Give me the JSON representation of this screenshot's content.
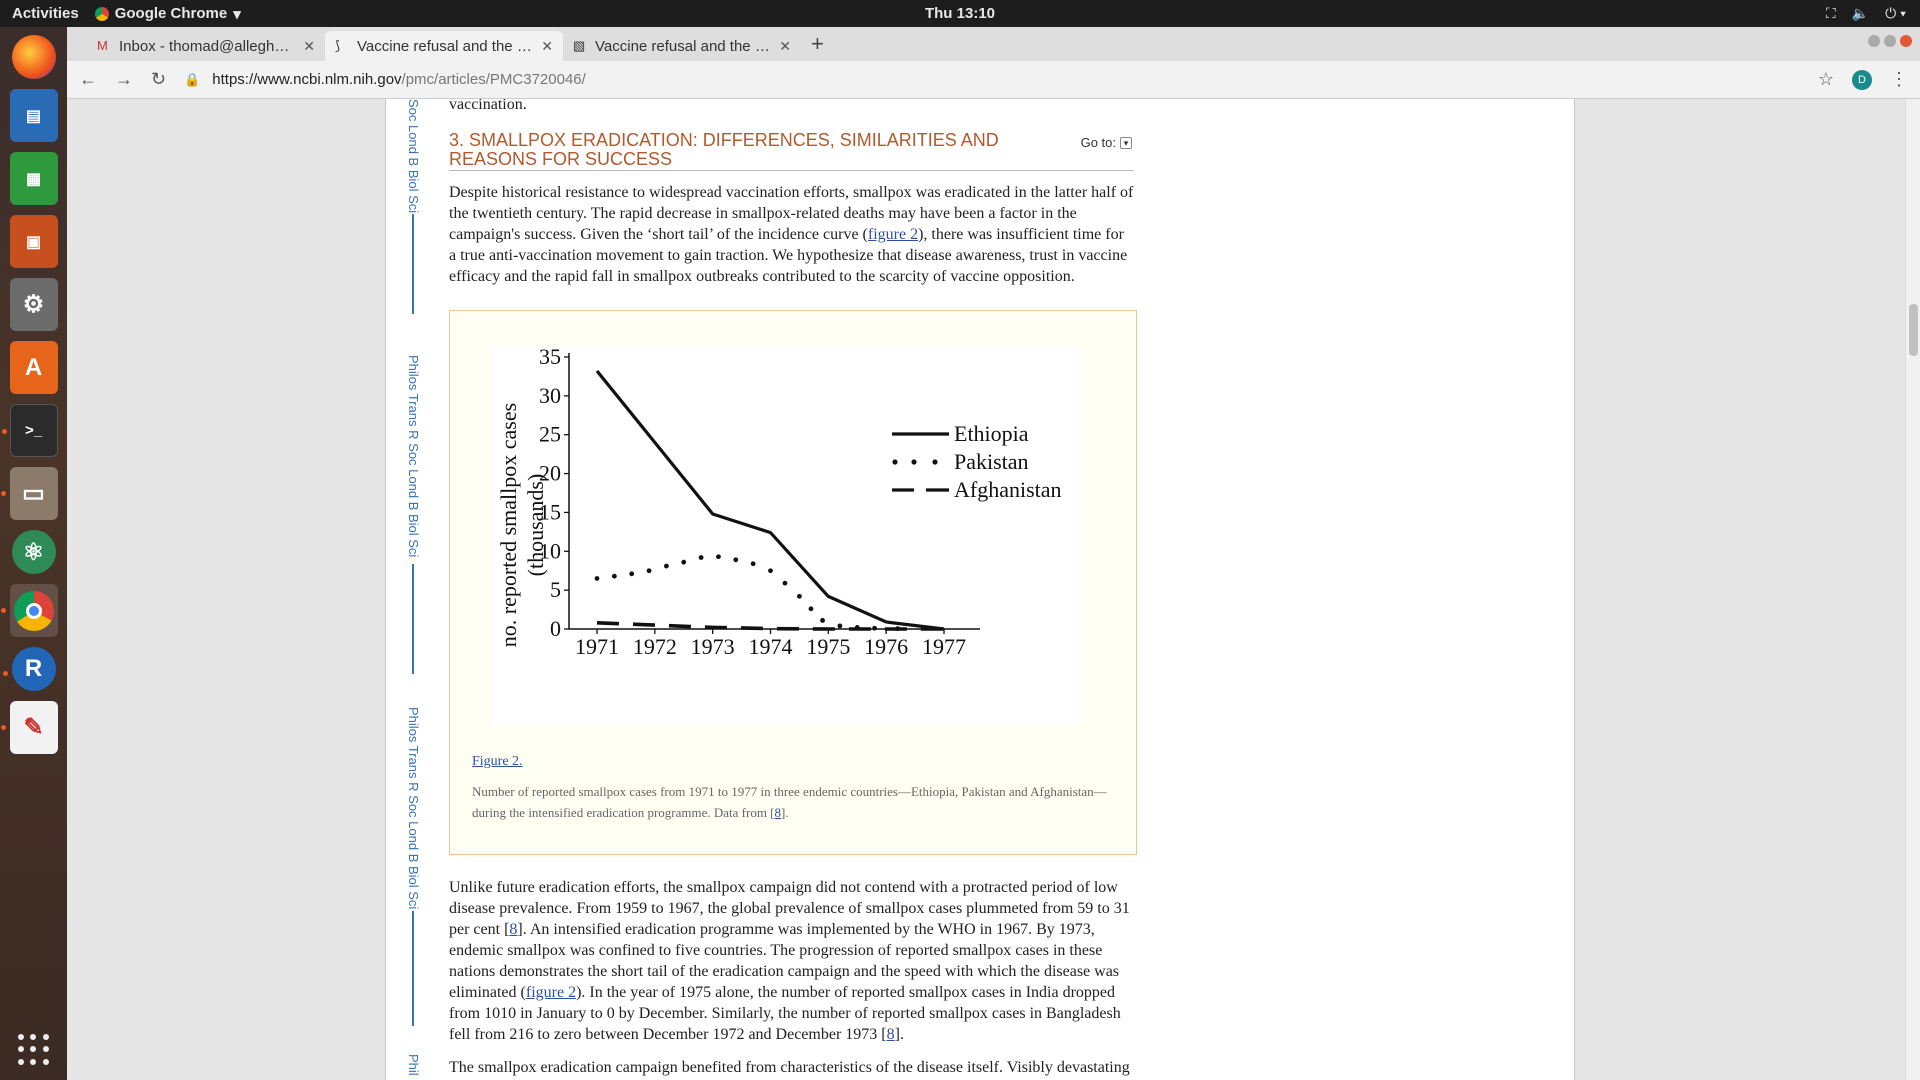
{
  "topbar": {
    "activities": "Activities",
    "app_name": "Google Chrome",
    "clock": "Thu 13:10"
  },
  "dock": {
    "apps": [
      "firefox-icon",
      "writer-icon",
      "calc-icon",
      "impress-icon",
      "settings-icon",
      "software-icon",
      "terminal-icon",
      "files-icon",
      "atom-icon",
      "chrome-icon",
      "r-icon",
      "evince-icon"
    ]
  },
  "browser": {
    "tabs": [
      {
        "label": "Inbox - thomad@allegheny.edu"
      },
      {
        "label": "Vaccine refusal and the endgame"
      },
      {
        "label": "Vaccine refusal and the endgame"
      }
    ],
    "url_host": "https://www.ncbi.nlm.nih.gov",
    "url_path": "/pmc/articles/PMC3720046/",
    "profile_initial": "D"
  },
  "rail": {
    "journal": "Philos Trans R Soc Lond B Biol Sci",
    "journal_partial": "Soc Lond B Biol Sci",
    "journal_bottom": "Phil"
  },
  "article": {
    "prev_tail": "vaccination.",
    "section_title": "3.   SMALLPOX ERADICATION: DIFFERENCES, SIMILARITIES AND REASONS FOR SUCCESS",
    "goto": "Go to:",
    "p1_a": "Despite historical resistance to widespread vaccination efforts, smallpox was eradicated in the latter half of the twentieth century. The rapid decrease in smallpox-related deaths may have been a factor in the campaign's success. Given the ‘short tail’ of the incidence curve (",
    "p1_link": "figure 2",
    "p1_b": "), there was insufficient time for a true anti-vaccination movement to gain traction. We hypothesize that disease awareness, trust in vaccine efficacy and the rapid fall in smallpox outbreaks contributed to the scarcity of vaccine opposition.",
    "figure_label": "Figure 2.",
    "figure_caption_a": "Number of reported smallpox cases from 1971 to 1977 in three endemic countries—Ethiopia, Pakistan and Afghanistan—during the intensified eradication programme. Data from [",
    "figure_caption_ref": "8",
    "figure_caption_b": "].",
    "p2_a": "Unlike future eradication efforts, the smallpox campaign did not contend with a protracted period of low disease prevalence. From 1959 to 1967, the global prevalence of smallpox cases plummeted from 59 to 31 per cent [",
    "p2_ref1": "8",
    "p2_b": "]. An intensified eradication programme was implemented by the WHO in 1967. By 1973, endemic smallpox was confined to five countries. The progression of reported smallpox cases in these nations demonstrates the short tail of the eradication campaign and the speed with which the disease was eliminated (",
    "p2_link": "figure 2",
    "p2_c": "). In the year of 1975 alone, the number of reported smallpox cases in India dropped from 1010 in January to 0 by December. Similarly, the number of reported smallpox cases in Bangladesh fell from 216 to zero between December 1972 and December 1973 [",
    "p2_ref2": "8",
    "p2_d": "].",
    "p3": "The smallpox eradication campaign benefited from characteristics of the disease itself. Visibly devastating"
  },
  "chart_data": {
    "type": "line",
    "ylabel": "no. reported smallpox cases (thousands)",
    "xlabel": "",
    "x": [
      1971,
      1972,
      1973,
      1974,
      1975,
      1976,
      1977
    ],
    "ylim": [
      0,
      35
    ],
    "yticks": [
      0,
      5,
      10,
      15,
      20,
      25,
      30,
      35
    ],
    "legend_position": "top-right",
    "grid": false,
    "series": [
      {
        "name": "Ethiopia",
        "style": "solid",
        "points": [
          [
            1971,
            33.2
          ],
          [
            1973,
            14.8
          ],
          [
            1974,
            12.4
          ],
          [
            1975,
            4.2
          ],
          [
            1976,
            0.9
          ],
          [
            1977,
            0.0
          ]
        ]
      },
      {
        "name": "Pakistan",
        "style": "dotted",
        "points": [
          [
            1971,
            6.5
          ],
          [
            1971.3,
            6.8
          ],
          [
            1971.6,
            7.1
          ],
          [
            1971.9,
            7.5
          ],
          [
            1972.2,
            8.1
          ],
          [
            1972.5,
            8.6
          ],
          [
            1972.8,
            9.2
          ],
          [
            1973.1,
            9.3
          ],
          [
            1973.4,
            8.9
          ],
          [
            1973.7,
            8.4
          ],
          [
            1974.0,
            7.5
          ],
          [
            1974.25,
            5.9
          ],
          [
            1974.5,
            4.2
          ],
          [
            1974.7,
            2.6
          ],
          [
            1974.9,
            1.1
          ],
          [
            1975.2,
            0.4
          ],
          [
            1975.5,
            0.2
          ],
          [
            1975.8,
            0.1
          ],
          [
            1976.2,
            0.05
          ]
        ]
      },
      {
        "name": "Afghanistan",
        "style": "dashed",
        "points": [
          [
            1971,
            0.8
          ],
          [
            1972,
            0.5
          ],
          [
            1973,
            0.2
          ],
          [
            1974,
            0.05
          ],
          [
            1975,
            0.0
          ],
          [
            1976,
            0.0
          ],
          [
            1977,
            0.0
          ]
        ]
      }
    ]
  }
}
